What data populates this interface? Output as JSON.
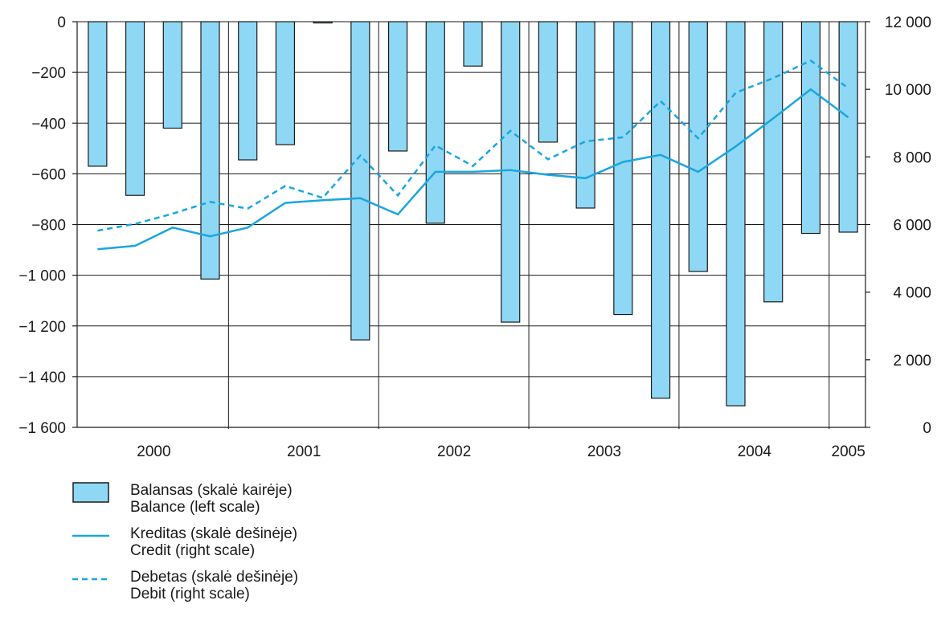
{
  "chart_data": {
    "type": "bar+line",
    "x": [
      "2000 Q1",
      "2000 Q2",
      "2000 Q3",
      "2000 Q4",
      "2001 Q1",
      "2001 Q2",
      "2001 Q3",
      "2001 Q4",
      "2002 Q1",
      "2002 Q2",
      "2002 Q3",
      "2002 Q4",
      "2003 Q1",
      "2003 Q2",
      "2003 Q3",
      "2003 Q4",
      "2004 Q1",
      "2004 Q2",
      "2004 Q3",
      "2004 Q4",
      "2005 Q1"
    ],
    "year_labels": [
      "2000",
      "2001",
      "2002",
      "2003",
      "2004",
      "2005"
    ],
    "left_axis": {
      "ylim": [
        -1600,
        0
      ],
      "ticks": [
        0,
        -200,
        -400,
        -600,
        -800,
        -1000,
        -1200,
        -1400,
        -1600
      ],
      "tick_labels": [
        "0",
        "−200",
        "−400",
        "−600",
        "−800",
        "−1 000",
        "−1 200",
        "−1 400",
        "−1 600"
      ]
    },
    "right_axis": {
      "ylim": [
        0,
        12000
      ],
      "ticks": [
        0,
        2000,
        4000,
        6000,
        8000,
        10000,
        12000
      ],
      "tick_labels": [
        "0",
        "2 000",
        "4 000",
        "6 000",
        "8 000",
        "10 000",
        "12 000"
      ]
    },
    "grid": true,
    "series": [
      {
        "name": "Balansas (skalė kairėje) / Balance (left scale)",
        "type": "bar",
        "axis": "left",
        "color": "#8fd8f5",
        "values": [
          -570,
          -685,
          -420,
          -1015,
          -545,
          -485,
          -5,
          -1255,
          -510,
          -795,
          -175,
          -1185,
          -475,
          -735,
          -1155,
          -1485,
          -985,
          -1515,
          -1105,
          -835,
          -830
        ]
      },
      {
        "name": "Kreditas (skalė dešinėje) / Credit (right scale)",
        "type": "line",
        "axis": "right",
        "color": "#1aa6e0",
        "dash": "solid",
        "values": [
          5270,
          5370,
          5910,
          5650,
          5910,
          6640,
          6720,
          6780,
          6300,
          7560,
          7560,
          7610,
          7470,
          7370,
          7850,
          8060,
          7560,
          8310,
          9140,
          10000,
          9170
        ]
      },
      {
        "name": "Debetas (skalė dešinėje) / Debit (right scale)",
        "type": "line",
        "axis": "right",
        "color": "#1aa6e0",
        "dash": "dashed",
        "values": [
          5820,
          6020,
          6320,
          6670,
          6470,
          7140,
          6790,
          8040,
          6860,
          8340,
          7730,
          8770,
          7930,
          8460,
          8580,
          9650,
          8550,
          9900,
          10330,
          10850,
          10030
        ]
      }
    ]
  },
  "legend": [
    {
      "line1": "Balansas (skalė kairėje)",
      "line2": "Balance (left scale)"
    },
    {
      "line1": "Kreditas (skalė dešinėje)",
      "line2": "Credit (right scale)"
    },
    {
      "line1": "Debetas (skalė dešinėje)",
      "line2": "Debit (right scale)"
    }
  ]
}
